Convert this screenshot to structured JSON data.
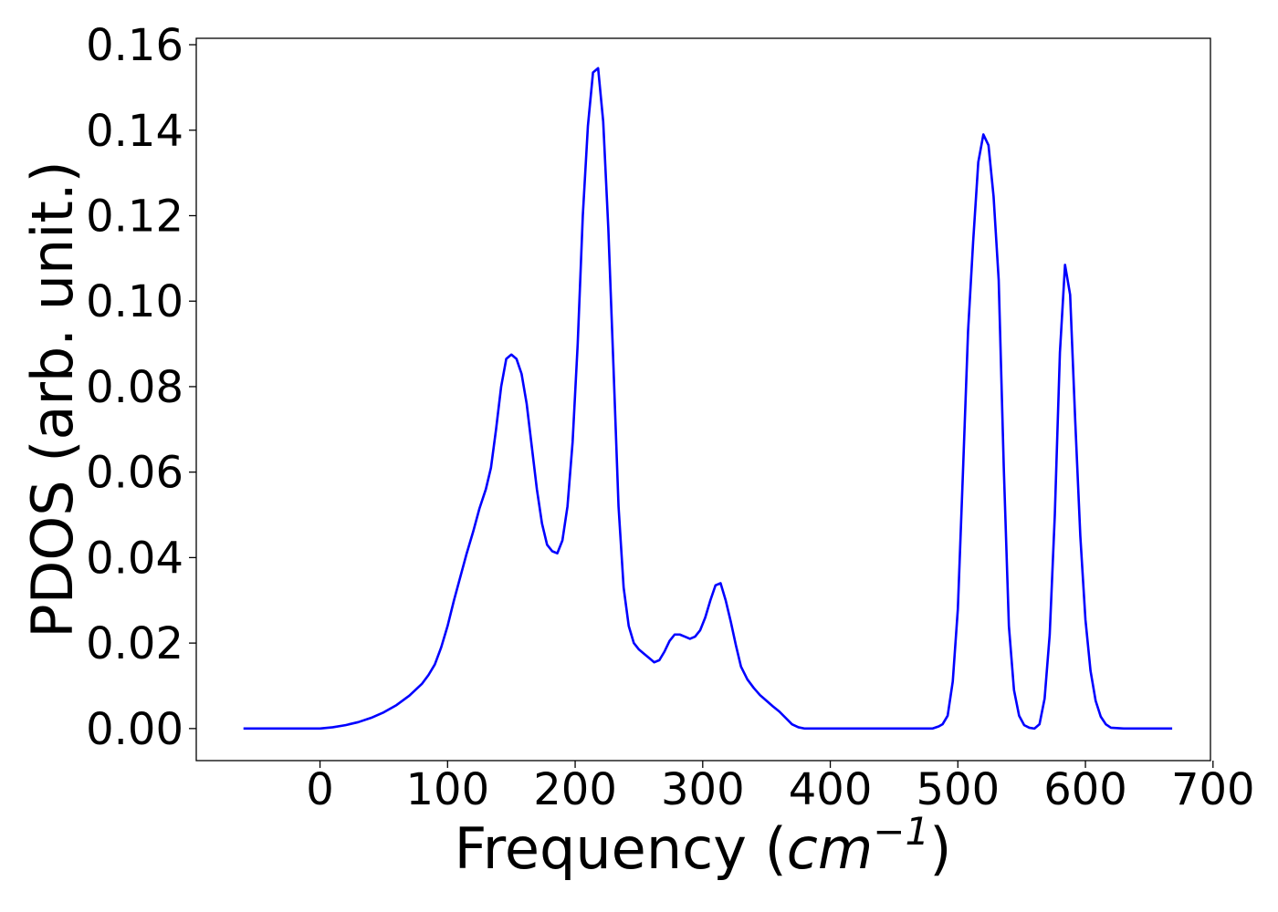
{
  "chart_data": {
    "type": "line",
    "xlabel": "Frequency (cm⁻¹)",
    "xlabel_parts": {
      "prefix": "Frequency (",
      "unit": "cm",
      "exponent": "−1",
      "suffix": ")"
    },
    "ylabel": "PDOS (arb. unit.)",
    "xlim": [
      -97,
      698
    ],
    "ylim": [
      -0.0075,
      0.1615
    ],
    "xticks": [
      0,
      100,
      200,
      300,
      400,
      500,
      600,
      700
    ],
    "yticks": [
      0.0,
      0.02,
      0.04,
      0.06,
      0.08,
      0.1,
      0.12,
      0.14,
      0.16
    ],
    "ytick_labels": [
      "0.00",
      "0.02",
      "0.04",
      "0.06",
      "0.08",
      "0.10",
      "0.12",
      "0.14",
      "0.16"
    ],
    "grid": false,
    "legend": "none",
    "line_color": "#0000ff",
    "series": [
      {
        "x": [
          -60,
          -40,
          -20,
          0,
          10,
          20,
          30,
          40,
          50,
          60,
          70,
          80,
          85,
          90,
          95,
          100,
          105,
          110,
          115,
          120,
          125,
          130,
          134,
          138,
          142,
          146,
          150,
          154,
          158,
          162,
          166,
          170,
          174,
          178,
          182,
          186,
          190,
          194,
          198,
          202,
          206,
          210,
          214,
          218,
          222,
          226,
          230,
          234,
          238,
          242,
          246,
          250,
          254,
          258,
          262,
          266,
          270,
          274,
          278,
          282,
          286,
          290,
          294,
          298,
          302,
          306,
          310,
          314,
          318,
          322,
          326,
          330,
          335,
          340,
          345,
          350,
          355,
          360,
          365,
          370,
          375,
          380,
          390,
          400,
          450,
          480,
          485,
          488,
          492,
          496,
          500,
          504,
          508,
          512,
          516,
          520,
          524,
          528,
          532,
          536,
          540,
          544,
          548,
          552,
          556,
          560,
          564,
          568,
          572,
          576,
          580,
          584,
          588,
          592,
          596,
          600,
          604,
          608,
          612,
          616,
          620,
          630,
          668
        ],
        "y": [
          0.0,
          0.0,
          0.0,
          0.0,
          0.0003,
          0.0008,
          0.0015,
          0.0025,
          0.0038,
          0.0055,
          0.0077,
          0.0105,
          0.0125,
          0.015,
          0.019,
          0.024,
          0.03,
          0.0355,
          0.041,
          0.046,
          0.0515,
          0.056,
          0.061,
          0.07,
          0.08,
          0.0865,
          0.0875,
          0.0865,
          0.083,
          0.076,
          0.066,
          0.056,
          0.048,
          0.043,
          0.0415,
          0.041,
          0.044,
          0.052,
          0.067,
          0.09,
          0.12,
          0.141,
          0.1535,
          0.1545,
          0.142,
          0.117,
          0.085,
          0.052,
          0.033,
          0.024,
          0.02,
          0.0185,
          0.0175,
          0.0165,
          0.0155,
          0.016,
          0.018,
          0.0205,
          0.022,
          0.022,
          0.0215,
          0.021,
          0.0215,
          0.023,
          0.026,
          0.03,
          0.0335,
          0.034,
          0.03,
          0.025,
          0.0195,
          0.0145,
          0.0115,
          0.0095,
          0.0078,
          0.0065,
          0.0052,
          0.004,
          0.0025,
          0.001,
          0.0003,
          0.0,
          0.0,
          0.0,
          0.0,
          0.0,
          0.0005,
          0.001,
          0.003,
          0.011,
          0.028,
          0.06,
          0.093,
          0.114,
          0.1325,
          0.139,
          0.1365,
          0.1245,
          0.105,
          0.061,
          0.024,
          0.009,
          0.003,
          0.0008,
          0.0002,
          0.0,
          0.001,
          0.007,
          0.022,
          0.05,
          0.088,
          0.1085,
          0.1015,
          0.072,
          0.045,
          0.0255,
          0.0135,
          0.0065,
          0.0028,
          0.001,
          0.0002,
          0.0,
          0.0
        ]
      }
    ]
  }
}
